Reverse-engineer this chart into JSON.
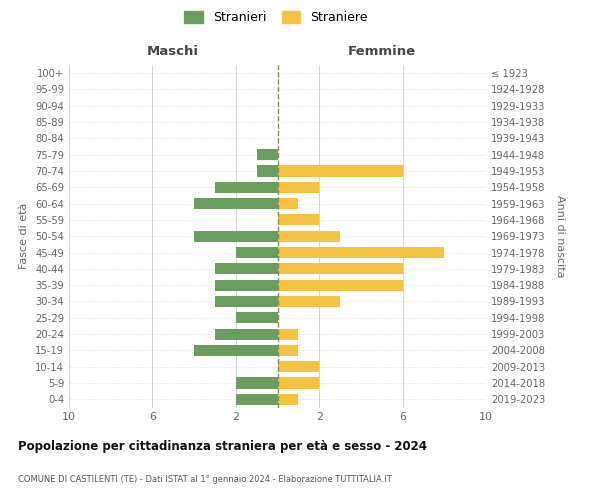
{
  "age_groups": [
    "100+",
    "95-99",
    "90-94",
    "85-89",
    "80-84",
    "75-79",
    "70-74",
    "65-69",
    "60-64",
    "55-59",
    "50-54",
    "45-49",
    "40-44",
    "35-39",
    "30-34",
    "25-29",
    "20-24",
    "15-19",
    "10-14",
    "5-9",
    "0-4"
  ],
  "birth_years": [
    "≤ 1923",
    "1924-1928",
    "1929-1933",
    "1934-1938",
    "1939-1943",
    "1944-1948",
    "1949-1953",
    "1954-1958",
    "1959-1963",
    "1964-1968",
    "1969-1973",
    "1974-1978",
    "1979-1983",
    "1984-1988",
    "1989-1993",
    "1994-1998",
    "1999-2003",
    "2004-2008",
    "2009-2013",
    "2014-2018",
    "2019-2023"
  ],
  "maschi": [
    0,
    0,
    0,
    0,
    0,
    1,
    1,
    3,
    4,
    0,
    4,
    2,
    3,
    3,
    3,
    2,
    3,
    4,
    0,
    2,
    2
  ],
  "femmine": [
    0,
    0,
    0,
    0,
    0,
    0,
    6,
    2,
    1,
    2,
    3,
    8,
    6,
    6,
    3,
    0,
    1,
    1,
    2,
    2,
    1
  ],
  "male_color": "#6a9e5f",
  "female_color": "#f5c242",
  "center_line_color": "#8b8b4e",
  "grid_color": "#cccccc",
  "title_main": "Popolazione per cittadinanza straniera per età e sesso - 2024",
  "title_sub": "COMUNE DI CASTILENTI (TE) - Dati ISTAT al 1° gennaio 2024 - Elaborazione TUTTITALIA.IT",
  "xlabel_left": "Maschi",
  "xlabel_right": "Femmine",
  "ylabel_left": "Fasce di età",
  "ylabel_right": "Anni di nascita",
  "legend_male": "Stranieri",
  "legend_female": "Straniere",
  "xlim": 10,
  "bg_color": "#ffffff"
}
